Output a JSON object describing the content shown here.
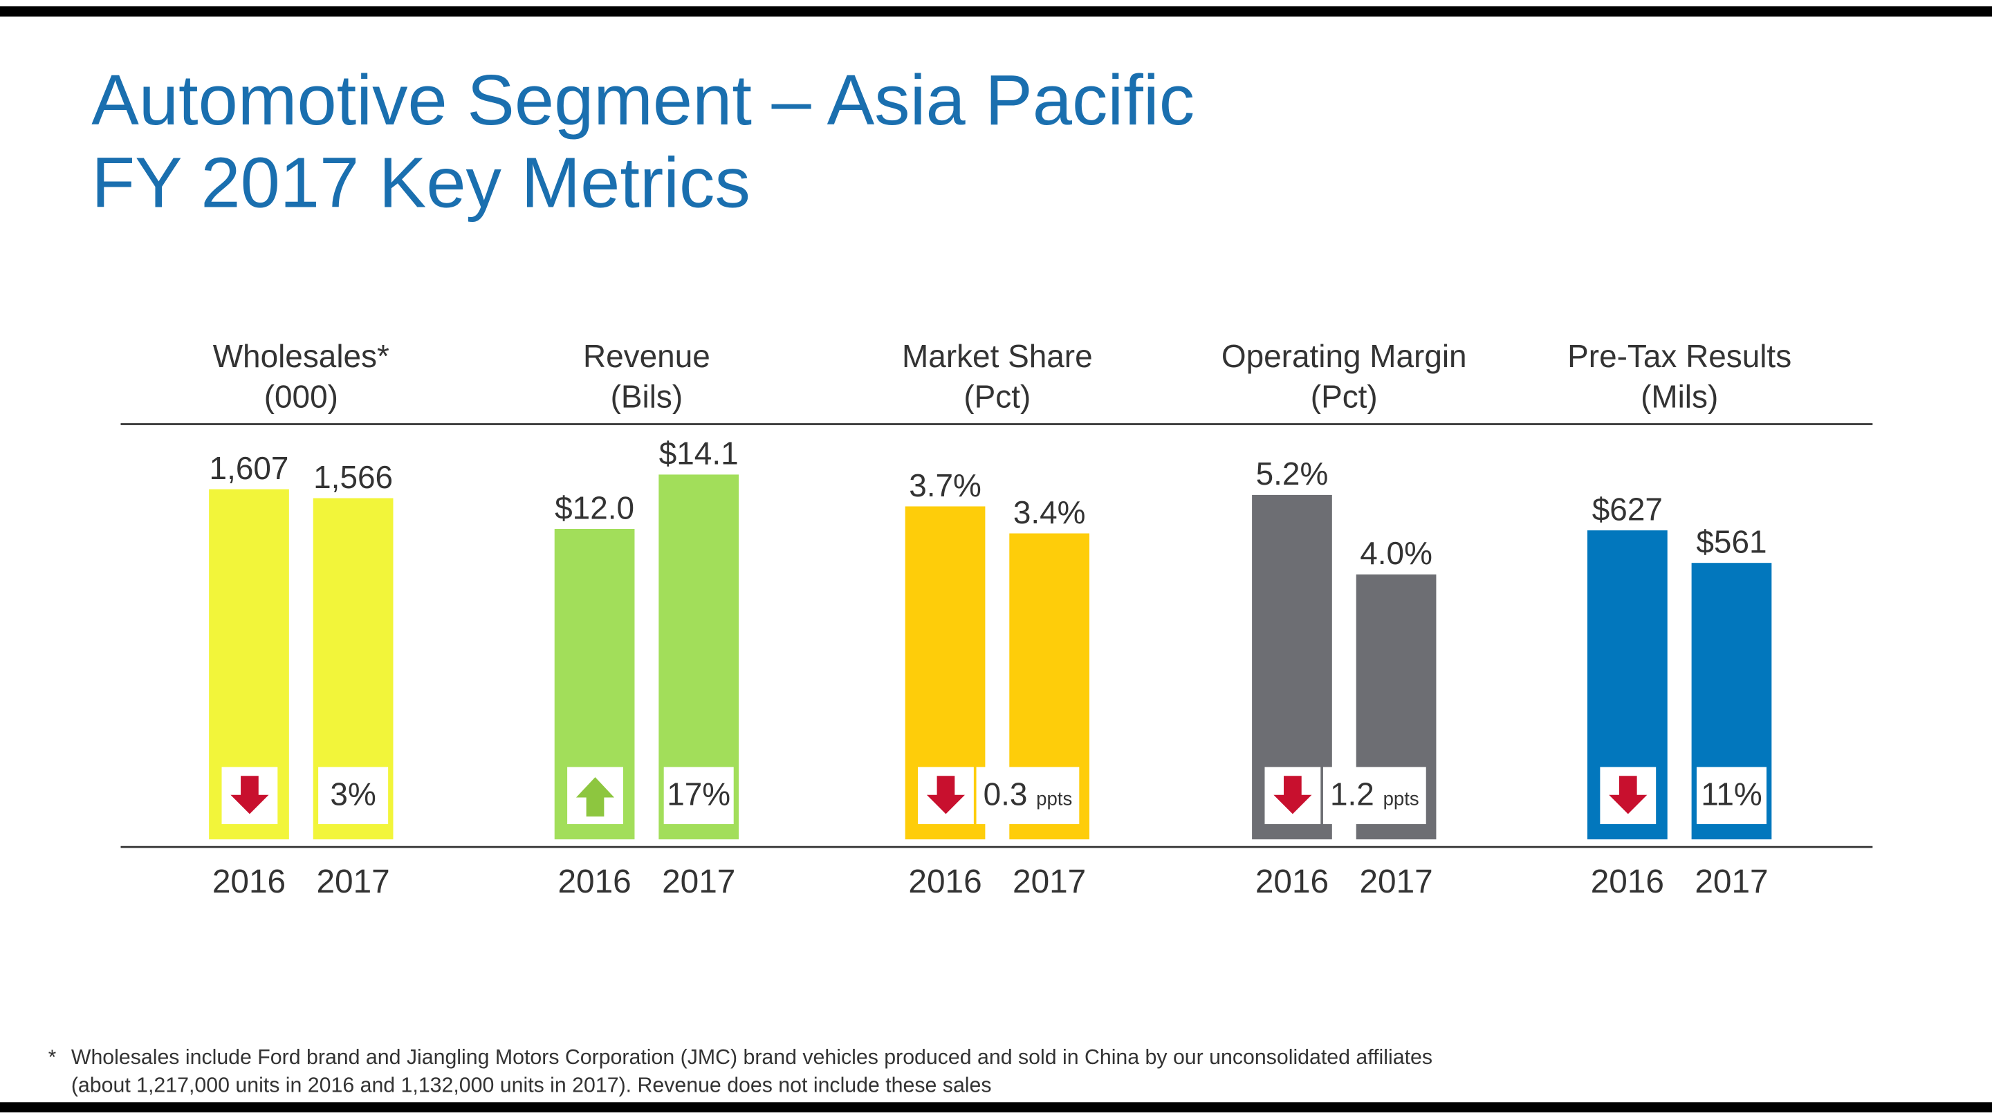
{
  "header": {
    "title_lines": [
      "Automotive Segment – Asia Pacific",
      "FY 2017 Key Metrics"
    ]
  },
  "chart_data": [
    {
      "type": "bar",
      "title": "Wholesales*",
      "subtitle": "(000)",
      "categories": [
        "2016",
        "2017"
      ],
      "values": [
        1607,
        1566
      ],
      "value_labels": [
        "1,607",
        "1,566"
      ],
      "color": "#f2f53a",
      "ylim": [
        0,
        1900
      ],
      "change_direction": "down",
      "change": "3%"
    },
    {
      "type": "bar",
      "title": "Revenue",
      "subtitle": "(Bils)",
      "categories": [
        "2016",
        "2017"
      ],
      "values": [
        12.0,
        14.1
      ],
      "value_labels": [
        "$12.0",
        "$14.1"
      ],
      "color": "#a2de5a",
      "ylim": [
        0,
        16
      ],
      "change_direction": "up",
      "change": "17%"
    },
    {
      "type": "bar",
      "title": "Market Share",
      "subtitle": "(Pct)",
      "categories": [
        "2016",
        "2017"
      ],
      "values": [
        3.7,
        3.4
      ],
      "value_labels": [
        "3.7%",
        "3.4%"
      ],
      "color": "#fecd0a",
      "ylim": [
        0,
        4.6
      ],
      "change_direction": "down",
      "change": "0.3",
      "change_unit": "ppts"
    },
    {
      "type": "bar",
      "title": "Operating Margin",
      "subtitle": "(Pct)",
      "categories": [
        "2016",
        "2017"
      ],
      "values": [
        5.2,
        4.0
      ],
      "value_labels": [
        "5.2%",
        "4.0%"
      ],
      "color": "#6d6e73",
      "ylim": [
        0,
        6.25
      ],
      "change_direction": "down",
      "change": "1.2",
      "change_unit": "ppts"
    },
    {
      "type": "bar",
      "title": "Pre-Tax Results",
      "subtitle": "(Mils)",
      "categories": [
        "2016",
        "2017"
      ],
      "values": [
        627,
        561
      ],
      "value_labels": [
        "$627",
        "$561"
      ],
      "color": "#0277bd",
      "ylim": [
        0,
        840
      ],
      "change_direction": "down",
      "change": "11%"
    }
  ],
  "footnote": {
    "mark": "*",
    "lines": [
      "Wholesales include Ford brand and Jiangling Motors Corporation (JMC) brand vehicles produced and sold in China by our unconsolidated affiliates",
      "(about 1,217,000 units in 2016 and 1,132,000 units in 2017).  Revenue does not include these sales"
    ]
  }
}
